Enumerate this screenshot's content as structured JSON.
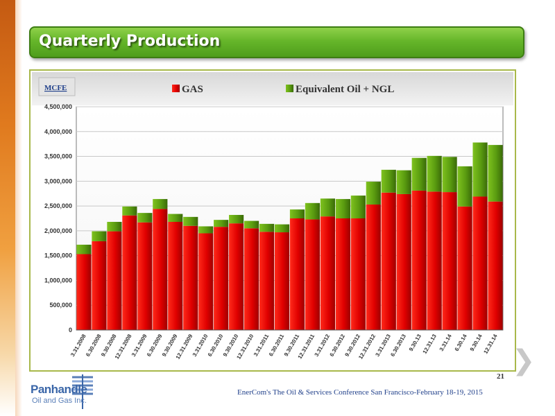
{
  "slide": {
    "title": "Quarterly Production",
    "page_number": "21",
    "footer": "EnerCom's The Oil & Services Conference San Francisco-February 18-19, 2015",
    "logo_name": "Panhandle",
    "logo_sub": "Oil and Gas Inc."
  },
  "colors": {
    "gas": "#e00000",
    "oil_ngl": "#5a9c10",
    "title_bar": "#66b62a",
    "accent": "#a8b84a"
  },
  "chart_data": {
    "type": "bar",
    "stacked": true,
    "unit_label": "MCFE",
    "categories": [
      "3.31.2008",
      "6.30.2008",
      "9.30.2008",
      "12.31.2008",
      "3.31.2009",
      "6.30.2009",
      "9.30.2009",
      "12.31.2009",
      "3.31.2010",
      "6.30.2010",
      "9.30.2010",
      "12.31.2010",
      "3.31.2011",
      "6.30.2011",
      "9.30.2011",
      "12.31.2011",
      "3.31.2012",
      "6.30.2012",
      "9.30.2012",
      "12.31.2012",
      "3.31.2013",
      "6.30.2013",
      "9.30.13",
      "12.31.13",
      "3.31.14",
      "6.30.14",
      "9.30.14",
      "12.31.14"
    ],
    "series": [
      {
        "name": "GAS",
        "values": [
          1530000,
          1790000,
          1990000,
          2310000,
          2170000,
          2440000,
          2180000,
          2100000,
          1950000,
          2080000,
          2150000,
          2050000,
          1980000,
          1970000,
          2250000,
          2230000,
          2290000,
          2250000,
          2250000,
          2530000,
          2770000,
          2740000,
          2810000,
          2790000,
          2780000,
          2490000,
          2690000,
          2590000
        ]
      },
      {
        "name": "Equivalent Oil + NGL",
        "values": [
          190000,
          200000,
          190000,
          180000,
          190000,
          200000,
          160000,
          180000,
          140000,
          140000,
          170000,
          150000,
          160000,
          160000,
          180000,
          330000,
          360000,
          390000,
          460000,
          460000,
          460000,
          480000,
          660000,
          720000,
          710000,
          810000,
          1090000,
          1140000
        ]
      }
    ],
    "ylim": [
      0,
      4500000
    ],
    "yticks": [
      0,
      500000,
      1000000,
      1500000,
      2000000,
      2500000,
      3000000,
      3500000,
      4000000,
      4500000
    ],
    "ytick_labels": [
      "0",
      "500,000",
      "1,000,000",
      "1,500,000",
      "2,000,000",
      "2,500,000",
      "3,000,000",
      "3,500,000",
      "4,000,000",
      "4,500,000"
    ],
    "grid": true,
    "legend_position": "top"
  }
}
